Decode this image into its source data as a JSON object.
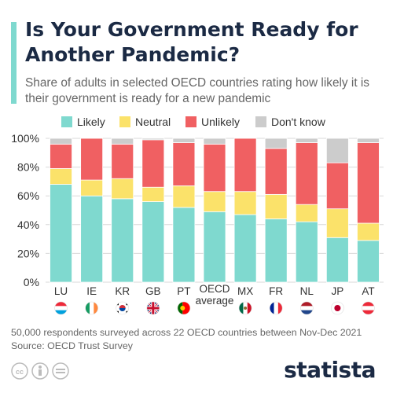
{
  "title": "Is Your Government Ready for Another Pandemic?",
  "subtitle": "Share of adults in selected OECD countries rating how likely it is their government is ready for a new pandemic",
  "footnote": "50,000 respondents surveyed across 22 OECD countries between Nov-Dec 2021",
  "source": "Source: OECD Trust Survey",
  "brand": "statista",
  "colors": {
    "likely": "#7fd9cf",
    "neutral": "#fbe26a",
    "unlikely": "#f06062",
    "dont_know": "#cccccc"
  },
  "chart_data": {
    "type": "bar",
    "stacked": true,
    "categories": [
      "LU",
      "IE",
      "KR",
      "GB",
      "PT",
      "OECD average",
      "MX",
      "FR",
      "NL",
      "JP",
      "AT"
    ],
    "flags": [
      "Luxembourg",
      "Ireland",
      "South Korea",
      "United Kingdom",
      "Portugal",
      "",
      "Mexico",
      "France",
      "Netherlands",
      "Japan",
      "Austria"
    ],
    "series": [
      {
        "name": "Likely",
        "color": "#7fd9cf",
        "values": [
          68,
          60,
          58,
          56,
          52,
          49,
          47,
          44,
          42,
          31,
          29
        ]
      },
      {
        "name": "Neutral",
        "color": "#fbe26a",
        "values": [
          11,
          11,
          14,
          10,
          15,
          14,
          16,
          17,
          12,
          20,
          12
        ]
      },
      {
        "name": "Unlikely",
        "color": "#f06062",
        "values": [
          17,
          29,
          24,
          33,
          30,
          33,
          37,
          32,
          43,
          32,
          56
        ]
      },
      {
        "name": "Don't know",
        "color": "#cccccc",
        "values": [
          4,
          0,
          4,
          1,
          3,
          4,
          0,
          7,
          3,
          17,
          3
        ]
      }
    ],
    "yticks": [
      "0%",
      "20%",
      "40%",
      "60%",
      "80%",
      "100%"
    ],
    "ylim": [
      0,
      100
    ],
    "legend": "top",
    "grid": true
  }
}
